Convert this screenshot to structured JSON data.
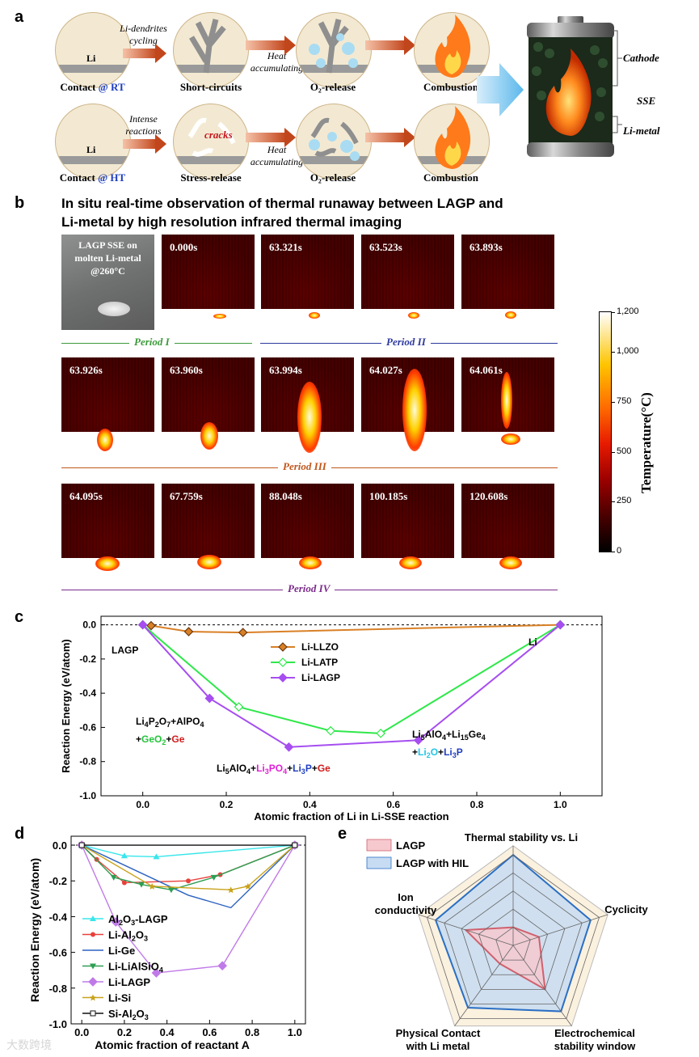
{
  "panel_a": {
    "letter": "a",
    "row1": {
      "li_label": "Li",
      "cap1_main": "Contact ",
      "cap1_at": "@ RT",
      "arrow1_l1": "Li-dendrites",
      "arrow1_l2": "cycling",
      "cap2": "Short-circuits",
      "arrow2_l1": "Heat",
      "arrow2_l2": "accumulating",
      "cap3": "O₂-release",
      "cap4": "Combustion"
    },
    "row2": {
      "li_label": "Li",
      "cap1_main": "Contact ",
      "cap1_at": "@ HT",
      "arrow1_l1": "Intense",
      "arrow1_l2": "reactions",
      "cracks": "cracks",
      "cap2": "Stress-release",
      "arrow2_l1": "Heat",
      "arrow2_l2": "accumulating",
      "cap3": "O₂-release",
      "cap4": "Combustion"
    },
    "battery": {
      "cathode": "Cathode",
      "sse": "SSE",
      "limetal": "Li-metal"
    }
  },
  "panel_b": {
    "letter": "b",
    "title_l1": "In situ real-time observation of thermal runaway between LAGP and",
    "title_l2": "Li-metal by high resolution infrared thermal imaging",
    "photo_l1": "LAGP SSE on",
    "photo_l2": "molten Li-metal",
    "photo_l3": "@260°C",
    "row1_times": [
      "0.000s",
      "63.321s",
      "63.523s",
      "63.893s"
    ],
    "row2_times": [
      "63.926s",
      "63.960s",
      "63.994s",
      "64.027s",
      "64.061s"
    ],
    "row3_times": [
      "64.095s",
      "67.759s",
      "88.048s",
      "100.185s",
      "120.608s"
    ],
    "periods": [
      "Period I",
      "Period II",
      "Period III",
      "Period IV"
    ],
    "colorbar_label": "Temperature(°C)",
    "colorbar_ticks": [
      "1,200",
      "1,000",
      "750",
      "500",
      "250",
      "0"
    ],
    "colorbar_values": [
      1200,
      1000,
      750,
      500,
      250,
      0
    ]
  },
  "chart_data": [
    {
      "panel": "c",
      "type": "line",
      "xlabel": "Atomic fraction of Li in Li-SSE reaction",
      "ylabel": "Reaction Energy (eV/atom)",
      "xlim": [
        -0.1,
        1.1
      ],
      "ylim": [
        -1.0,
        0.05
      ],
      "xticks": [
        "0.0",
        "0.2",
        "0.4",
        "0.6",
        "0.8",
        "1.0"
      ],
      "yticks": [
        "0.0",
        "-0.2",
        "-0.4",
        "-0.6",
        "-0.8",
        "-1.0"
      ],
      "legend_position": "upper-center",
      "series": [
        {
          "name": "Li-LLZO",
          "color": "#d98026",
          "marker": "diamond-open",
          "x": [
            0,
            0.02,
            0.11,
            0.24,
            1.0
          ],
          "y": [
            0,
            -0.005,
            -0.04,
            -0.045,
            0
          ]
        },
        {
          "name": "Li-LATP",
          "color": "#2fe84a",
          "marker": "diamond-open",
          "x": [
            0,
            0.23,
            0.45,
            0.57,
            1.0
          ],
          "y": [
            0,
            -0.48,
            -0.62,
            -0.635,
            0
          ]
        },
        {
          "name": "Li-LAGP",
          "color": "#a64ef0",
          "marker": "diamond-filled",
          "x": [
            0,
            0.16,
            0.35,
            0.66,
            1.0
          ],
          "y": [
            0,
            -0.43,
            -0.715,
            -0.675,
            0
          ]
        }
      ],
      "annotations": {
        "lagp": "LAGP",
        "li": "Li",
        "ann1_l1a": "Li",
        "ann1_l1b": "4",
        "ann1_l1c": "P",
        "ann1_l1d": "2",
        "ann1_l1e": "O",
        "ann1_l1f": "7",
        "ann1_l1g": "+AlPO",
        "ann1_l1h": "4",
        "ann1_l2a": "+",
        "ann1_l2b": "GeO",
        "ann1_l2c": "2",
        "ann1_l2d": "+",
        "ann1_l2e": "Ge",
        "ann2a": "Li",
        "ann2b": "5",
        "ann2c": "AlO",
        "ann2d": "4",
        "ann2e": "+",
        "ann2f": "Li",
        "ann2g": "3",
        "ann2h": "PO",
        "ann2i": "4",
        "ann2j": "+",
        "ann2k": "Li",
        "ann2l": "3",
        "ann2m": "P",
        "ann2n": "+",
        "ann2o": "Ge",
        "ann3_l1a": "Li",
        "ann3_l1b": "5",
        "ann3_l1c": "AlO",
        "ann3_l1d": "4",
        "ann3_l1e": "+Li",
        "ann3_l1f": "15",
        "ann3_l1g": "Ge",
        "ann3_l1h": "4",
        "ann3_l2a": "+",
        "ann3_l2b": "Li",
        "ann3_l2c": "2",
        "ann3_l2d": "O",
        "ann3_l2e": "+",
        "ann3_l2f": "Li",
        "ann3_l2g": "3",
        "ann3_l2h": "P"
      }
    },
    {
      "panel": "d",
      "type": "line",
      "xlabel": "Atomic fraction of reactant A",
      "ylabel": "Reaction Energy (eV/atom)",
      "xlim": [
        -0.05,
        1.05
      ],
      "ylim": [
        -1.0,
        0.05
      ],
      "xticks": [
        "0.0",
        "0.2",
        "0.4",
        "0.6",
        "0.8",
        "1.0"
      ],
      "yticks": [
        "0.0",
        "-0.2",
        "-0.4",
        "-0.6",
        "-0.8",
        "-1.0"
      ],
      "legend_position": "lower-left",
      "series": [
        {
          "name": "Al₂O₃-LAGP",
          "legend_a": "Al",
          "legend_b": "2",
          "legend_c": "O",
          "legend_d": "3",
          "legend_e": "-LAGP",
          "color": "#38e6ea",
          "marker": "triangle-up",
          "x": [
            0,
            0.2,
            0.35,
            1.0
          ],
          "y": [
            0,
            -0.06,
            -0.065,
            0
          ]
        },
        {
          "name": "Li-Al₂O₃",
          "legend_a": "Li-Al",
          "legend_b": "2",
          "legend_c": "O",
          "legend_d": "3",
          "legend_e": "",
          "color": "#e8413c",
          "marker": "circle",
          "x": [
            0,
            0.07,
            0.2,
            0.5,
            0.65,
            1.0
          ],
          "y": [
            0,
            -0.08,
            -0.21,
            -0.2,
            -0.165,
            0
          ]
        },
        {
          "name": "Li-Ge",
          "color": "#2b62c0",
          "marker": "line",
          "x": [
            0,
            0.5,
            0.7,
            1.0
          ],
          "y": [
            0,
            -0.28,
            -0.35,
            0
          ]
        },
        {
          "name": "Li-LiAlSiO₄",
          "legend_a": "Li-LiAlSiO",
          "legend_b": "4",
          "legend_c": "",
          "legend_d": "",
          "legend_e": "",
          "color": "#2e9e52",
          "marker": "triangle-down",
          "x": [
            0,
            0.15,
            0.28,
            0.42,
            0.62,
            1.0
          ],
          "y": [
            0,
            -0.18,
            -0.22,
            -0.25,
            -0.18,
            0
          ]
        },
        {
          "name": "Li-LAGP",
          "color": "#c07ae8",
          "marker": "diamond",
          "x": [
            0,
            0.16,
            0.35,
            0.66,
            1.0
          ],
          "y": [
            0,
            -0.43,
            -0.715,
            -0.675,
            0
          ]
        },
        {
          "name": "Li-Si",
          "color": "#c9a21a",
          "marker": "star",
          "x": [
            0,
            0.33,
            0.7,
            0.78,
            1.0
          ],
          "y": [
            0,
            -0.23,
            -0.25,
            -0.23,
            0
          ]
        },
        {
          "name": "Si-Al₂O₃",
          "legend_a": "Si-Al",
          "legend_b": "2",
          "legend_c": "O",
          "legend_d": "3",
          "legend_e": "",
          "color": "#111111",
          "marker": "square-open",
          "x": [
            0,
            1.0
          ],
          "y": [
            0,
            0
          ]
        }
      ]
    },
    {
      "panel": "e",
      "type": "radar",
      "axes": [
        "Thermal stability vs. Li",
        "Cyclicity",
        "Electrochemical stability window",
        "Physical Contact with Li metal",
        "Ion conductivity"
      ],
      "axis_label_lines": [
        [
          "Thermal stability vs. Li"
        ],
        [
          "Cyclicity"
        ],
        [
          "Electrochemical",
          "stability window"
        ],
        [
          "Physical Contact",
          "with Li metal"
        ],
        [
          "Ion",
          "conductivity"
        ]
      ],
      "levels": 5,
      "series": [
        {
          "name": "LAGP",
          "color": "#d0616e",
          "fill": "#f6c9cf",
          "values": [
            0.2,
            0.3,
            0.6,
            0.25,
            0.55
          ]
        },
        {
          "name": "LAGP with HIL",
          "color": "#2a6fc4",
          "fill": "#c7dcf2",
          "values": [
            1.0,
            0.9,
            0.9,
            0.85,
            0.9
          ]
        }
      ]
    }
  ],
  "watermark": "大数跨境"
}
